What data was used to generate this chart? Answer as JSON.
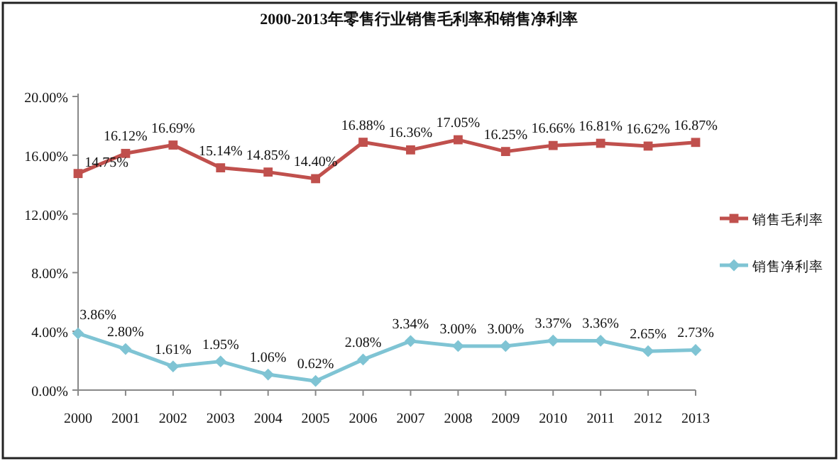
{
  "chart_data": {
    "type": "line",
    "title": "2000-2013年零售行业销售毛利率和销售净利率",
    "categories": [
      "2000",
      "2001",
      "2002",
      "2003",
      "2004",
      "2005",
      "2006",
      "2007",
      "2008",
      "2009",
      "2010",
      "2011",
      "2012",
      "2013"
    ],
    "series": [
      {
        "name": "销售毛利率",
        "color": "#c0504d",
        "marker": "square",
        "values": [
          14.75,
          16.12,
          16.69,
          15.14,
          14.85,
          14.4,
          16.88,
          16.36,
          17.05,
          16.25,
          16.66,
          16.81,
          16.62,
          16.87
        ],
        "value_labels": [
          "14.75%",
          "16.12%",
          "16.69%",
          "15.14%",
          "14.85%",
          "14.40%",
          "16.88%",
          "16.36%",
          "17.05%",
          "16.25%",
          "16.66%",
          "16.81%",
          "16.62%",
          "16.87%"
        ]
      },
      {
        "name": "销售净利率",
        "color": "#7fc4d4",
        "marker": "diamond",
        "values": [
          3.86,
          2.8,
          1.61,
          1.95,
          1.06,
          0.62,
          2.08,
          3.34,
          3.0,
          3.0,
          3.37,
          3.36,
          2.65,
          2.73
        ],
        "value_labels": [
          "3.86%",
          "2.80%",
          "1.61%",
          "1.95%",
          "1.06%",
          "0.62%",
          "2.08%",
          "3.34%",
          "3.00%",
          "3.00%",
          "3.37%",
          "3.36%",
          "2.65%",
          "2.73%"
        ]
      }
    ],
    "ylim": [
      0,
      20
    ],
    "yticks": [
      {
        "value": 0,
        "label": "0.00%"
      },
      {
        "value": 4,
        "label": "4.00%"
      },
      {
        "value": 8,
        "label": "8.00%"
      },
      {
        "value": 12,
        "label": "12.00%"
      },
      {
        "value": 16,
        "label": "16.00%"
      },
      {
        "value": 20,
        "label": "20.00%"
      }
    ],
    "grid": false,
    "legend": "right",
    "line_style": "solid"
  }
}
